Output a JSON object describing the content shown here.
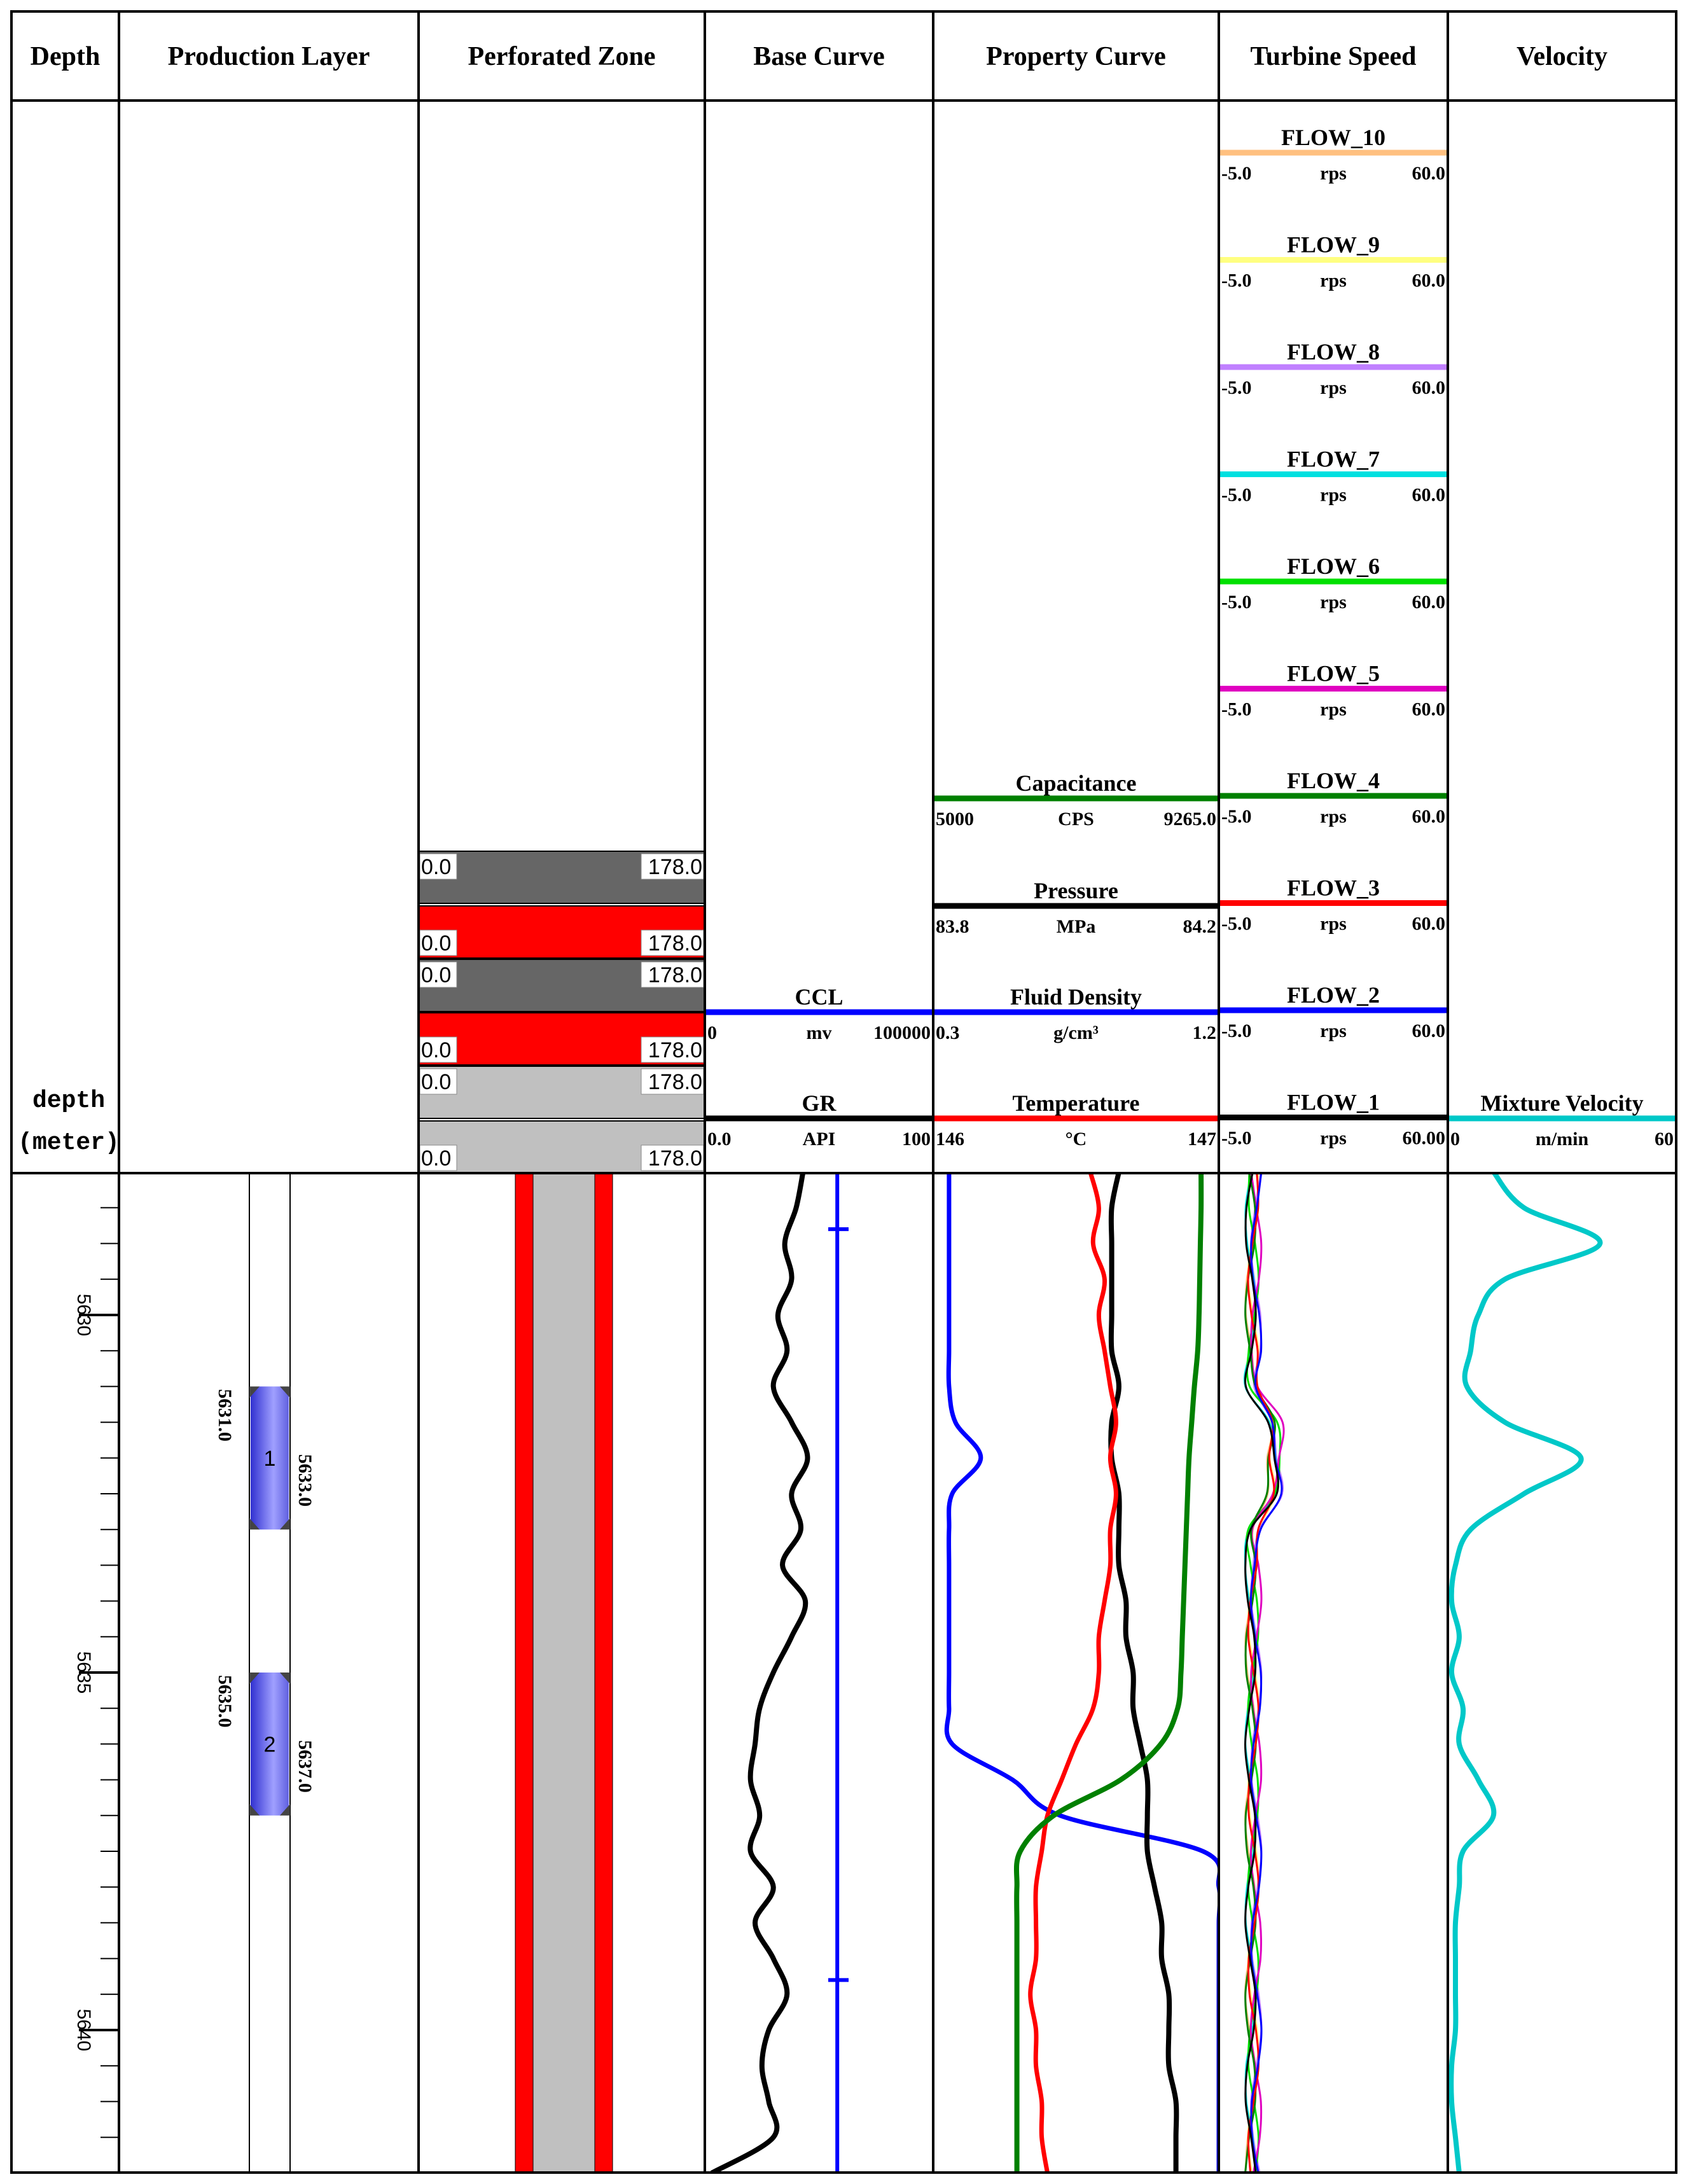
{
  "tracks": [
    {
      "id": "depth",
      "title": "Depth",
      "x0": 0,
      "x1": 0
    },
    {
      "id": "layer",
      "title": "Production Layer"
    },
    {
      "id": "perf",
      "title": "Perforated Zone"
    },
    {
      "id": "base",
      "title": "Base Curve"
    },
    {
      "id": "prop",
      "title": "Property Curve"
    },
    {
      "id": "turb",
      "title": "Turbine Speed"
    },
    {
      "id": "vel",
      "title": "Velocity"
    }
  ],
  "depth_header": {
    "line1": "depth",
    "line2": "(meter)"
  },
  "perforated_zone": {
    "rows": [
      {
        "left": "0.0",
        "right": "178.0",
        "color": "#666666"
      },
      {
        "left": "0.0",
        "right": "178.0",
        "color": "#ff0000"
      },
      {
        "left": "0.0",
        "right": "178.0",
        "color": "#666666"
      },
      {
        "left": "0.0",
        "right": "178.0",
        "color": "#ff0000"
      },
      {
        "left": "0.0",
        "right": "178.0",
        "color": "#c0c0c0"
      },
      {
        "left": "0.0",
        "right": "178.0",
        "color": "#c0c0c0"
      }
    ]
  },
  "base_curves": [
    {
      "name": "CCL",
      "unit": "mv",
      "min": "0",
      "max": "100000",
      "color": "#0000ff"
    },
    {
      "name": "GR",
      "unit": "API",
      "min": "0.0",
      "max": "100",
      "color": "#000000"
    }
  ],
  "property_curves": [
    {
      "name": "Capacitance",
      "unit": "CPS",
      "min": "5000",
      "max": "9265.0",
      "color": "#008000"
    },
    {
      "name": "Pressure",
      "unit": "MPa",
      "min": "83.8",
      "max": "84.2",
      "color": "#000000"
    },
    {
      "name": "Fluid Density",
      "unit": "g/cm³",
      "min": "0.3",
      "max": "1.2",
      "color": "#0000ff"
    },
    {
      "name": "Temperature",
      "unit": "°C",
      "min": "146",
      "max": "147",
      "color": "#ff0000"
    }
  ],
  "turbine_curves": [
    {
      "name": "FLOW_10",
      "unit": "rps",
      "min": "-5.0",
      "max": "60.0",
      "color": "#ffc080"
    },
    {
      "name": "FLOW_9",
      "unit": "rps",
      "min": "-5.0",
      "max": "60.0",
      "color": "#ffff80"
    },
    {
      "name": "FLOW_8",
      "unit": "rps",
      "min": "-5.0",
      "max": "60.0",
      "color": "#c080ff"
    },
    {
      "name": "FLOW_7",
      "unit": "rps",
      "min": "-5.0",
      "max": "60.0",
      "color": "#00e0e0"
    },
    {
      "name": "FLOW_6",
      "unit": "rps",
      "min": "-5.0",
      "max": "60.0",
      "color": "#00e000"
    },
    {
      "name": "FLOW_5",
      "unit": "rps",
      "min": "-5.0",
      "max": "60.0",
      "color": "#e000c0"
    },
    {
      "name": "FLOW_4",
      "unit": "rps",
      "min": "-5.0",
      "max": "60.0",
      "color": "#008000"
    },
    {
      "name": "FLOW_3",
      "unit": "rps",
      "min": "-5.0",
      "max": "60.0",
      "color": "#ff0000"
    },
    {
      "name": "FLOW_2",
      "unit": "rps",
      "min": "-5.0",
      "max": "60.0",
      "color": "#0000ff"
    },
    {
      "name": "FLOW_1",
      "unit": "rps",
      "min": "-5.0",
      "max": "60.00",
      "color": "#000000"
    }
  ],
  "velocity_curve": {
    "name": "Mixture Velocity",
    "unit": "m/min",
    "min": "0",
    "max": "60",
    "color": "#00c8c8"
  },
  "chart_data": {
    "type": "line",
    "title": "",
    "ylabel": "depth (meter)",
    "depth_range": [
      5628.0,
      5642.0
    ],
    "depth_ticks": [
      "5630",
      "5635",
      "5640"
    ],
    "production_layers": [
      {
        "id": "1",
        "top": "5631.0",
        "bottom": "5633.0",
        "top_value": 5631.0,
        "bottom_value": 5633.0
      },
      {
        "id": "2",
        "top": "5635.0",
        "bottom": "5637.0",
        "top_value": 5635.0,
        "bottom_value": 5637.0
      }
    ],
    "depths": [
      5628.0,
      5628.5,
      5629.0,
      5629.5,
      5630.0,
      5630.5,
      5631.0,
      5631.5,
      5632.0,
      5632.5,
      5633.0,
      5633.5,
      5634.0,
      5634.5,
      5635.0,
      5635.5,
      5636.0,
      5636.5,
      5637.0,
      5637.5,
      5638.0,
      5638.5,
      5639.0,
      5639.5,
      5640.0,
      5640.5,
      5641.0,
      5641.5,
      5642.0
    ],
    "series": [
      {
        "name": "GR",
        "unit": "API",
        "range": [
          0,
          100
        ],
        "values": [
          43,
          40,
          35,
          38,
          32,
          36,
          30,
          38,
          45,
          38,
          42,
          34,
          44,
          38,
          30,
          24,
          22,
          20,
          24,
          20,
          30,
          22,
          30,
          36,
          28,
          25,
          28,
          30,
          3
        ]
      },
      {
        "name": "CCL",
        "unit": "mv",
        "range": [
          0,
          100000
        ],
        "values": [
          58000,
          58000,
          58000,
          58000,
          58000,
          58000,
          58000,
          58000,
          58000,
          58000,
          58000,
          58000,
          58000,
          58000,
          58000,
          58000,
          58000,
          58000,
          58000,
          58000,
          58000,
          58000,
          58000,
          58000,
          58000,
          58000,
          58000,
          58000,
          58000
        ]
      },
      {
        "name": "Fluid Density",
        "unit": "g/cm³",
        "range": [
          0.3,
          1.2
        ],
        "values": [
          0.35,
          0.35,
          0.35,
          0.35,
          0.35,
          0.35,
          0.35,
          0.37,
          0.45,
          0.36,
          0.35,
          0.35,
          0.35,
          0.35,
          0.35,
          0.35,
          0.36,
          0.55,
          0.7,
          1.15,
          1.2,
          1.2,
          1.2,
          1.2,
          1.2,
          1.2,
          1.2,
          1.2,
          1.2
        ]
      },
      {
        "name": "Pressure",
        "unit": "MPa",
        "range": [
          83.8,
          84.2
        ],
        "values": [
          84.06,
          84.05,
          84.05,
          84.05,
          84.05,
          84.05,
          84.06,
          84.05,
          84.05,
          84.06,
          84.06,
          84.06,
          84.07,
          84.07,
          84.08,
          84.08,
          84.09,
          84.1,
          84.1,
          84.1,
          84.11,
          84.12,
          84.12,
          84.13,
          84.13,
          84.13,
          84.14,
          84.14,
          84.14
        ]
      },
      {
        "name": "Temperature",
        "unit": "°C",
        "range": [
          146,
          147
        ],
        "values": [
          146.55,
          146.58,
          146.56,
          146.6,
          146.58,
          146.6,
          146.62,
          146.64,
          146.62,
          146.64,
          146.62,
          146.62,
          146.6,
          146.58,
          146.58,
          146.56,
          146.5,
          146.45,
          146.4,
          146.38,
          146.36,
          146.36,
          146.36,
          146.34,
          146.36,
          146.36,
          146.38,
          146.38,
          146.4
        ]
      },
      {
        "name": "Capacitance",
        "unit": "CPS",
        "range": [
          5000,
          9265
        ],
        "values": [
          9000,
          9000,
          8990,
          8980,
          8970,
          8950,
          8900,
          8860,
          8820,
          8800,
          8780,
          8760,
          8740,
          8720,
          8700,
          8650,
          8400,
          7800,
          6800,
          6300,
          6250,
          6250,
          6250,
          6250,
          6250,
          6250,
          6250,
          6250,
          6250
        ]
      },
      {
        "name": "Mixture Velocity",
        "unit": "m/min",
        "range": [
          0,
          60
        ],
        "values": [
          12,
          20,
          40,
          15,
          8,
          6,
          5,
          15,
          35,
          20,
          6,
          2,
          1,
          3,
          1,
          4,
          3,
          8,
          12,
          4,
          3,
          2,
          2,
          2,
          2,
          1,
          1,
          2,
          3
        ]
      }
    ]
  }
}
